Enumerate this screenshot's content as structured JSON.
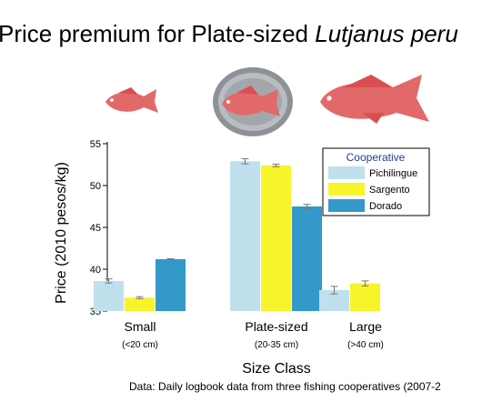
{
  "slide": {
    "title_plain": "Price premium for Plate-sized",
    "title_species": "Lutjanus peru",
    "source_note": "Data: Daily logbook data from three fishing cooperatives (2007-2"
  },
  "fish_images": [
    {
      "name": "small-fish-icon",
      "size_class": "Small"
    },
    {
      "name": "plate-sized-fish-icon",
      "size_class": "Plate-sized"
    },
    {
      "name": "large-fish-icon",
      "size_class": "Large"
    }
  ],
  "colors": {
    "Pichilingue": "#bfe0ec",
    "Sargento": "#f7f42a",
    "Dorado": "#3399c8",
    "fish": "#e2696a",
    "plate": "#a8acb0"
  },
  "chart_data": {
    "type": "bar",
    "categories": [
      "Small",
      "Plate-sized",
      "Large"
    ],
    "category_sublabels": [
      "(<20 cm)",
      "(20-35 cm)",
      "(>40 cm)"
    ],
    "series": [
      {
        "name": "Pichilingue",
        "values": [
          38.6,
          52.9,
          37.5
        ],
        "errors": [
          0.25,
          0.3,
          0.45
        ]
      },
      {
        "name": "Sargento",
        "values": [
          36.6,
          52.4,
          38.3
        ],
        "errors": [
          0.12,
          0.15,
          0.3
        ]
      },
      {
        "name": "Dorado",
        "values": [
          41.2,
          47.5,
          null
        ],
        "errors": [
          0.05,
          0.25,
          null
        ]
      }
    ],
    "xlabel": "Size Class",
    "ylabel": "Price (2010 pesos/kg)",
    "ylim": [
      35,
      55
    ],
    "yticks": [
      35,
      40,
      45,
      50,
      55
    ],
    "legend_title": "Cooperative",
    "legend_position": "top-right",
    "grid": false,
    "error_bars": true
  }
}
